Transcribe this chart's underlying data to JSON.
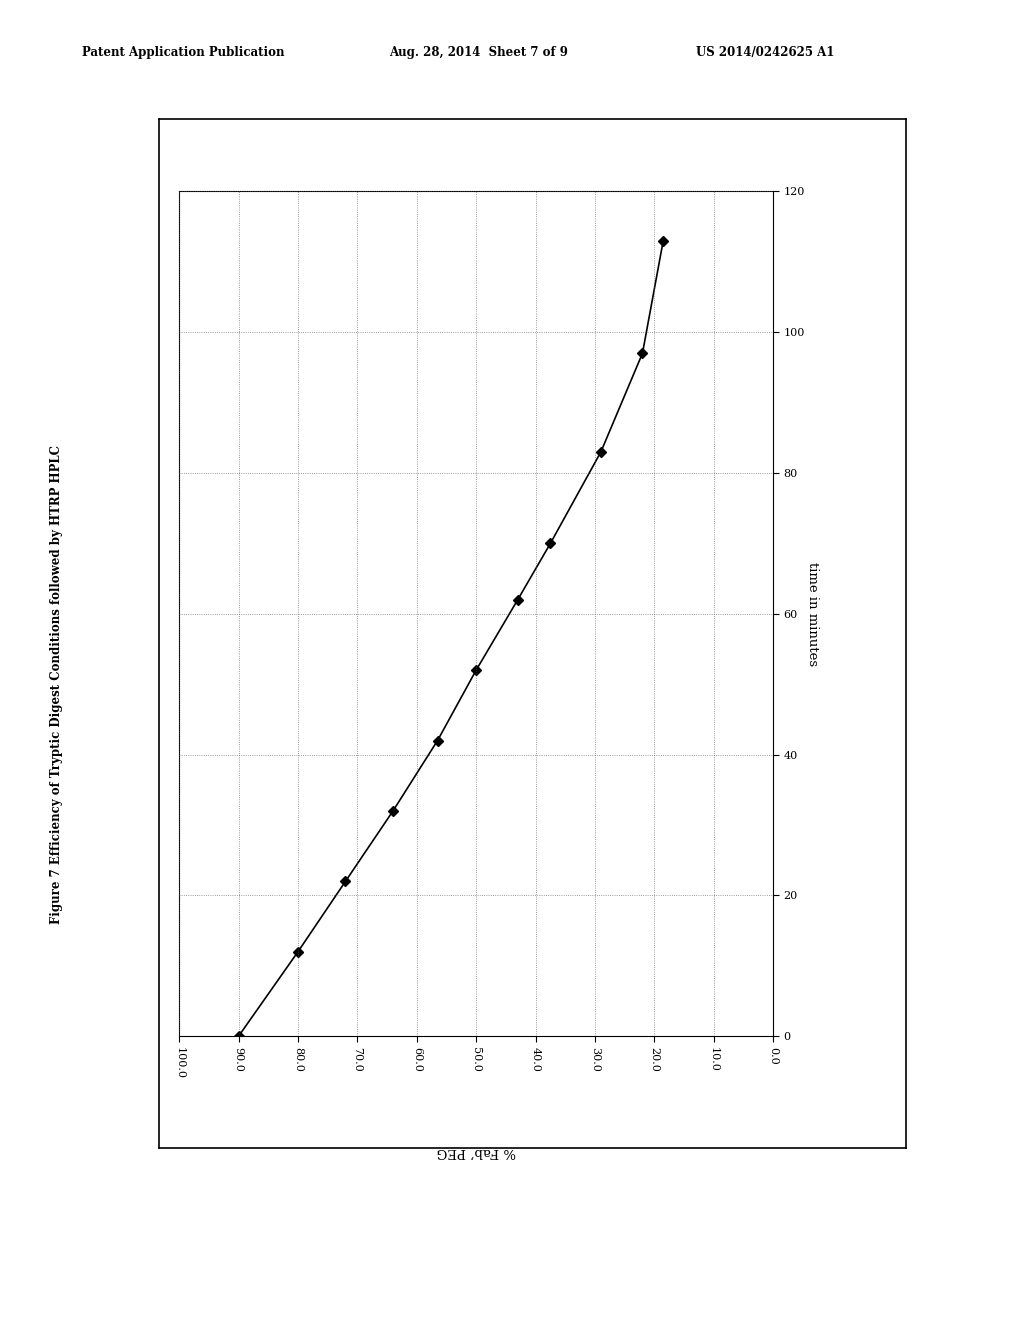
{
  "title": "Figure 7 Efficiency of Tryptic Digest Conditions followed by HTRP HPLC",
  "header_left": "Patent Application Publication",
  "header_mid": "Aug. 28, 2014  Sheet 7 of 9",
  "header_right": "US 2014/0242625 A1",
  "xlabel": "% Fab’ PEG",
  "ylabel": "time in minutes",
  "x_values": [
    90.0,
    80.0,
    72.0,
    64.0,
    56.5,
    50.0,
    43.0,
    37.5,
    29.0,
    22.0,
    18.5
  ],
  "y_values": [
    0,
    12,
    22,
    32,
    42,
    52,
    62,
    70,
    83,
    97,
    113
  ],
  "xlim_left": 100.0,
  "xlim_right": 0.0,
  "ylim_bottom": 0,
  "ylim_top": 120,
  "xticks": [
    100.0,
    90.0,
    80.0,
    70.0,
    60.0,
    50.0,
    40.0,
    30.0,
    20.0,
    10.0,
    0.0
  ],
  "yticks": [
    0,
    20,
    40,
    60,
    80,
    100,
    120
  ],
  "line_color": "#000000",
  "marker": "D",
  "marker_size": 5,
  "background_color": "#ffffff",
  "fig_width": 10.24,
  "fig_height": 13.2
}
